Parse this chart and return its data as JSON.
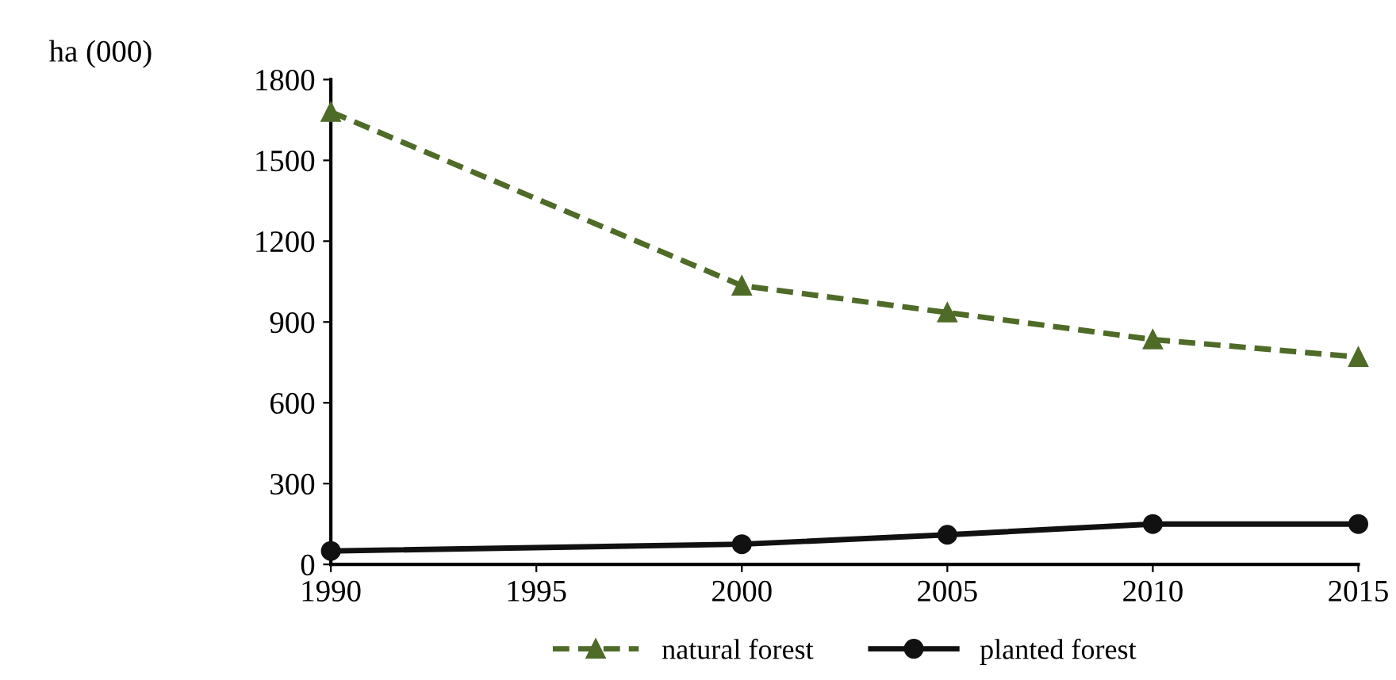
{
  "chart_data": {
    "type": "line",
    "ylabel": "ha (000)",
    "x": [
      1990,
      2000,
      2005,
      2010,
      2015
    ],
    "series": [
      {
        "name": "natural forest",
        "color": "#4f6b28",
        "values": [
          1680,
          1035,
          935,
          835,
          770
        ],
        "marker": "triangle",
        "line_style": "dashed"
      },
      {
        "name": "planted forest",
        "color": "#111111",
        "values": [
          50,
          75,
          110,
          150,
          150
        ],
        "marker": "circle",
        "line_style": "solid"
      }
    ],
    "xlim": [
      1990,
      2015
    ],
    "xticks": [
      1990,
      1995,
      2000,
      2005,
      2010,
      2015
    ],
    "ylim": [
      0,
      1800
    ],
    "yticks": [
      0,
      300,
      600,
      900,
      1200,
      1500,
      1800
    ],
    "grid": false,
    "legend": "bottom"
  }
}
